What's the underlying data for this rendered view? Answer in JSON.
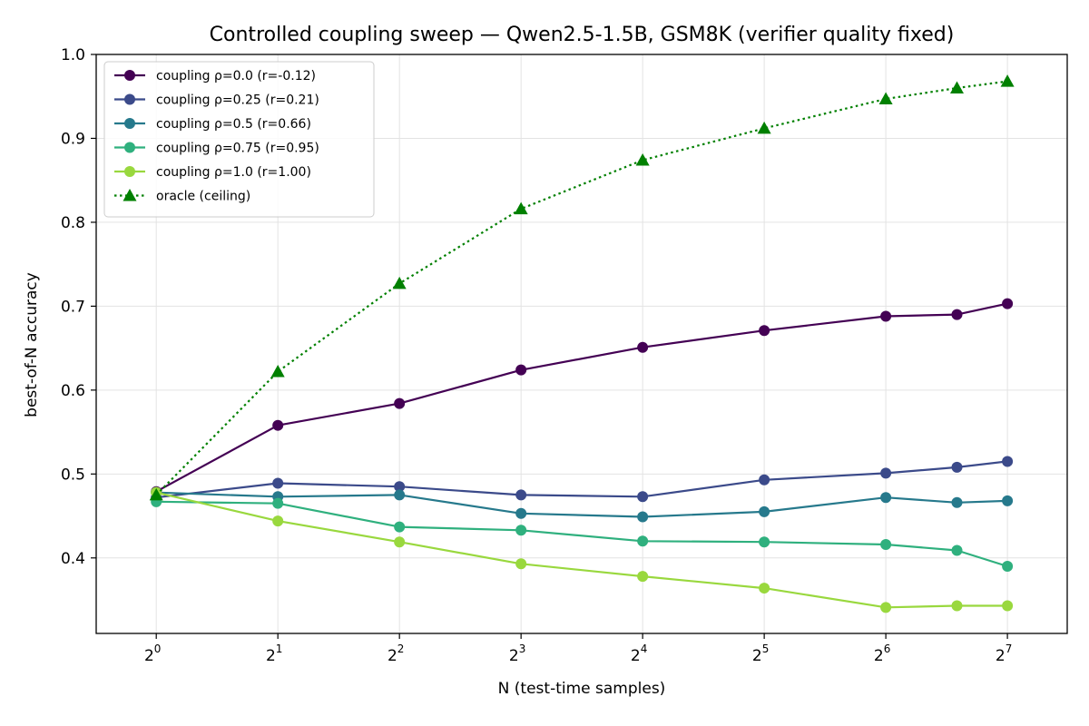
{
  "chart_data": {
    "type": "line",
    "title": "Controlled coupling sweep — Qwen2.5-1.5B, GSM8K (verifier quality fixed)",
    "xlabel": "N (test-time samples)",
    "ylabel": "best-of-N accuracy",
    "x_scale": "log2",
    "x": [
      1,
      2,
      4,
      8,
      16,
      32,
      64,
      96,
      128
    ],
    "xlim": [
      0.71,
      180
    ],
    "ylim": [
      0.31,
      1.0
    ],
    "x_ticks": [
      {
        "value": 1,
        "base": "2",
        "exp": "0"
      },
      {
        "value": 2,
        "base": "2",
        "exp": "1"
      },
      {
        "value": 4,
        "base": "2",
        "exp": "2"
      },
      {
        "value": 8,
        "base": "2",
        "exp": "3"
      },
      {
        "value": 16,
        "base": "2",
        "exp": "4"
      },
      {
        "value": 32,
        "base": "2",
        "exp": "5"
      },
      {
        "value": 64,
        "base": "2",
        "exp": "6"
      },
      {
        "value": 128,
        "base": "2",
        "exp": "7"
      }
    ],
    "y_ticks": [
      {
        "value": 0.4,
        "label": "0.4"
      },
      {
        "value": 0.5,
        "label": "0.5"
      },
      {
        "value": 0.6,
        "label": "0.6"
      },
      {
        "value": 0.7,
        "label": "0.7"
      },
      {
        "value": 0.8,
        "label": "0.8"
      },
      {
        "value": 0.9,
        "label": "0.9"
      },
      {
        "value": 1.0,
        "label": "1.0"
      }
    ],
    "grid": true,
    "legend_position": "top-left",
    "series": [
      {
        "name": "coupling ρ=0.0  (r=-0.12)",
        "color": "#440154",
        "marker": "circle",
        "line": "solid",
        "values": [
          0.479,
          0.558,
          0.584,
          0.624,
          0.651,
          0.671,
          0.688,
          0.69,
          0.703
        ]
      },
      {
        "name": "coupling ρ=0.25  (r=0.21)",
        "color": "#3b4a8a",
        "marker": "circle",
        "line": "solid",
        "values": [
          0.472,
          0.489,
          0.485,
          0.475,
          0.473,
          0.493,
          0.501,
          0.508,
          0.515
        ]
      },
      {
        "name": "coupling ρ=0.5  (r=0.66)",
        "color": "#26798c",
        "marker": "circle",
        "line": "solid",
        "values": [
          0.478,
          0.473,
          0.475,
          0.453,
          0.449,
          0.455,
          0.472,
          0.466,
          0.468
        ]
      },
      {
        "name": "coupling ρ=0.75  (r=0.95)",
        "color": "#2fb07e",
        "marker": "circle",
        "line": "solid",
        "values": [
          0.467,
          0.465,
          0.437,
          0.433,
          0.42,
          0.419,
          0.416,
          0.409,
          0.39
        ]
      },
      {
        "name": "coupling ρ=1.0  (r=1.00)",
        "color": "#99d83e",
        "marker": "circle",
        "line": "solid",
        "values": [
          0.478,
          0.444,
          0.419,
          0.393,
          0.378,
          0.364,
          0.341,
          0.343,
          0.343
        ]
      },
      {
        "name": "oracle (ceiling)",
        "color": "#008000",
        "marker": "triangle",
        "line": "dotted",
        "values": [
          0.475,
          0.622,
          0.727,
          0.816,
          0.874,
          0.912,
          0.947,
          0.96,
          0.968
        ]
      }
    ]
  }
}
